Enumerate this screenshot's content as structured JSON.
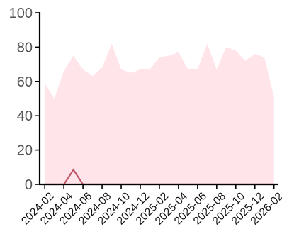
{
  "chart_data": {
    "type": "area",
    "title": "",
    "xlabel": "",
    "ylabel": "",
    "ylim": [
      0,
      100
    ],
    "yticks": [
      0,
      20,
      40,
      60,
      80,
      100
    ],
    "xlim": [
      "2024-01-15",
      "2026-02-15"
    ],
    "xticks": [
      "2024-02",
      "2024-04",
      "2024-06",
      "2024-08",
      "2024-10",
      "2024-12",
      "2025-02",
      "2025-04",
      "2025-06",
      "2025-08",
      "2025-10",
      "2025-12",
      "2026-02"
    ],
    "grid": false,
    "legend": "none",
    "x": [
      "2024-02",
      "2024-03",
      "2024-04",
      "2024-05",
      "2024-06",
      "2024-07",
      "2024-08",
      "2024-09",
      "2024-10",
      "2024-11",
      "2024-12",
      "2025-01",
      "2025-02",
      "2025-03",
      "2025-04",
      "2025-05",
      "2025-06",
      "2025-07",
      "2025-08",
      "2025-09",
      "2025-10",
      "2025-11",
      "2025-12",
      "2026-01",
      "2026-02"
    ],
    "series": [
      {
        "kind": "area",
        "color": "#ffe4e9",
        "values": [
          59,
          50,
          66,
          75,
          67,
          63,
          68,
          82,
          67,
          65,
          67,
          67,
          74,
          75,
          77,
          67,
          67,
          82,
          67,
          80,
          78,
          72,
          76,
          74,
          51
        ]
      },
      {
        "kind": "line",
        "color": "#c0576a",
        "values": [
          0,
          0,
          0,
          8.5,
          0,
          0,
          0,
          0,
          0,
          0,
          0,
          0,
          0,
          0,
          0,
          0,
          0,
          0,
          0,
          0,
          0,
          0,
          0,
          0,
          0
        ]
      }
    ]
  }
}
